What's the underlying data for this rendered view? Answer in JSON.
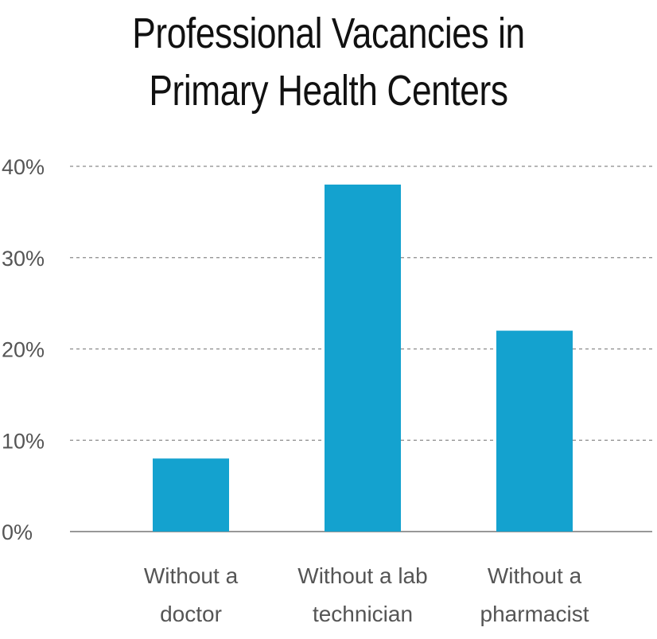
{
  "title_lines": [
    "Professional Vacancies in",
    "Primary Health Centers"
  ],
  "colors": {
    "bar": "#14a2cf",
    "grid": "#8a8a8a",
    "axis": "#777777",
    "text": "#555555"
  },
  "chart_data": {
    "type": "bar",
    "title": "Professional Vacancies in Primary Health Centers",
    "categories": [
      [
        "Without a",
        "doctor"
      ],
      [
        "Without a lab",
        "technician"
      ],
      [
        "Without a",
        "pharmacist"
      ]
    ],
    "values": [
      8,
      38,
      22
    ],
    "ylim": [
      0,
      40
    ],
    "yticks": [
      0,
      10,
      20,
      30,
      40
    ],
    "ytick_labels": [
      "0%",
      "10%",
      "20%",
      "30%",
      "40%"
    ],
    "grid": true
  }
}
